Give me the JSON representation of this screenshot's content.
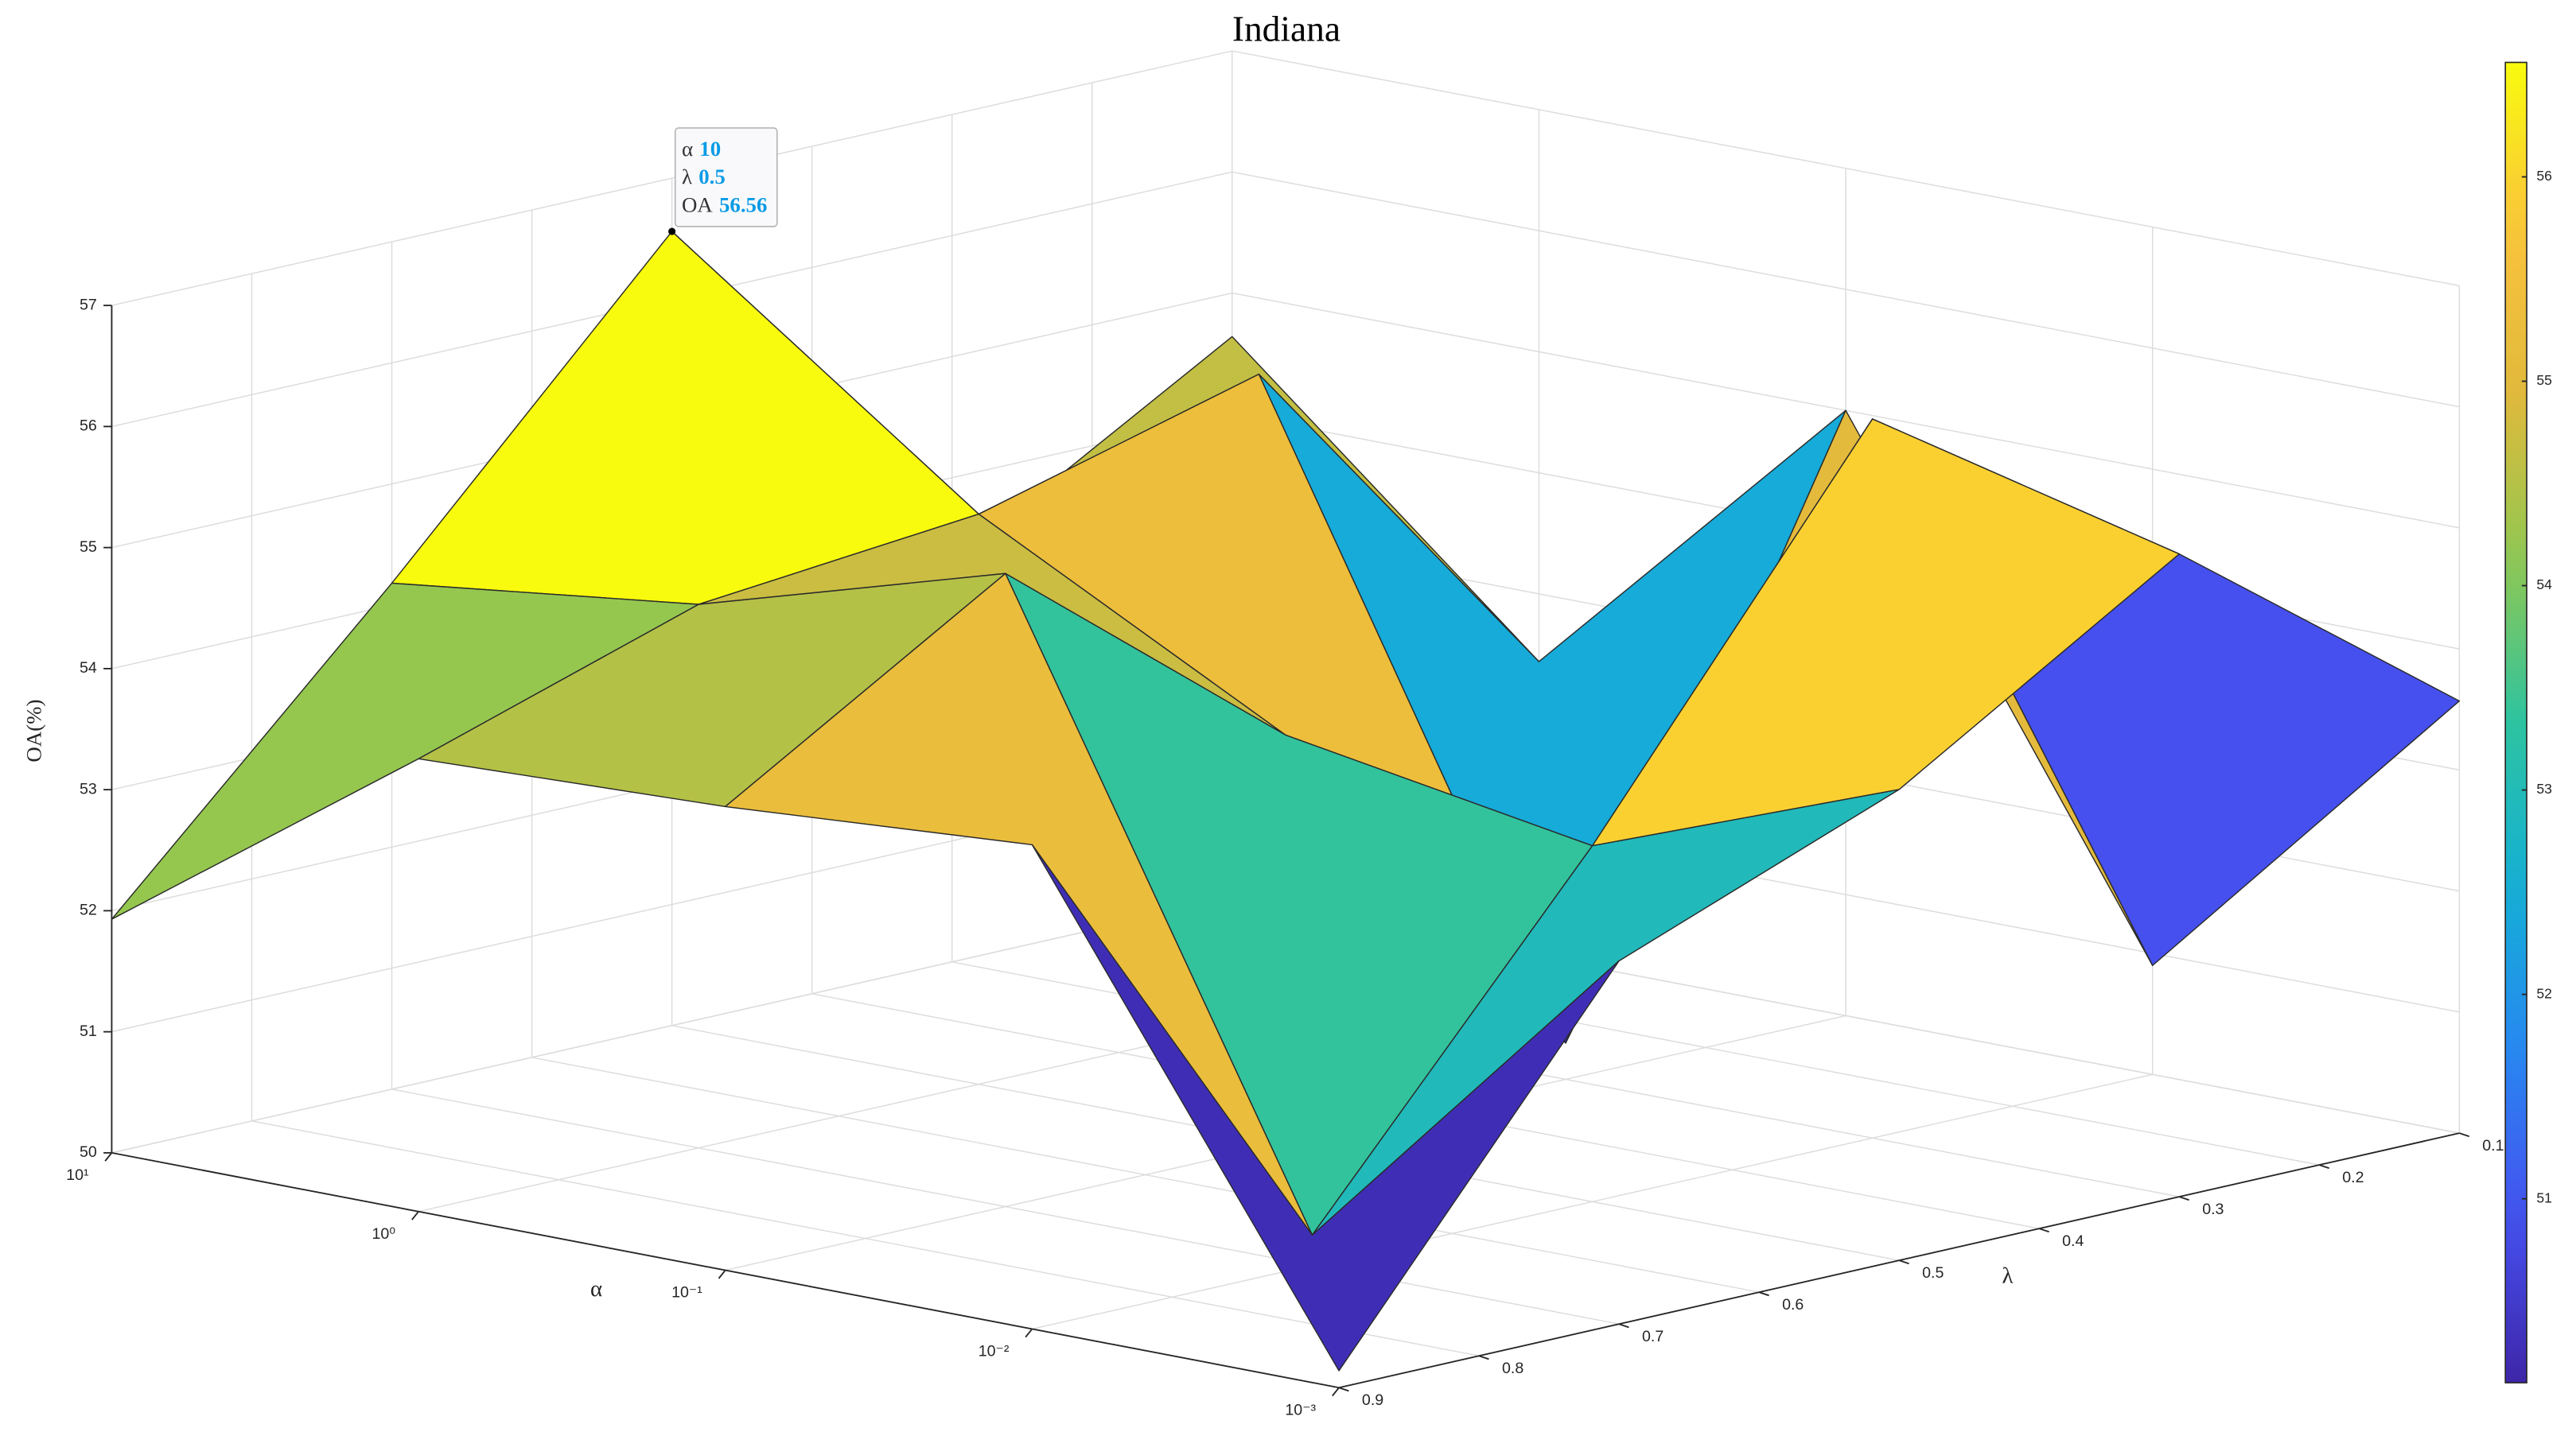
{
  "chart_data": {
    "type": "surface",
    "title": "Indiana",
    "xlabel": "α",
    "ylabel": "λ",
    "zlabel": "OA(%)",
    "x": [
      0.001,
      0.01,
      0.1,
      1,
      10
    ],
    "y": [
      0.1,
      0.3,
      0.5,
      0.7,
      0.9
    ],
    "z": [
      [
        53.57,
        55.31,
        53.89,
        53.0,
        50.14
      ],
      [
        50.9,
        55.94,
        52.94,
        50.25,
        54.0
      ],
      [
        55.0,
        50.3,
        53.37,
        55.23,
        53.83
      ],
      [
        52.44,
        55.34,
        54.71,
        54.49,
        53.74
      ],
      [
        54.64,
        53.3,
        56.56,
        54.18,
        51.93
      ]
    ],
    "xscale": "log",
    "xlim": [
      0.001,
      10
    ],
    "xticks": [
      {
        "value": 0.001,
        "label": "10⁻³"
      },
      {
        "value": 0.01,
        "label": "10⁻²"
      },
      {
        "value": 0.1,
        "label": "10⁻¹"
      },
      {
        "value": 1,
        "label": "10⁰"
      },
      {
        "value": 10,
        "label": "10¹"
      }
    ],
    "ylim": [
      0.1,
      0.9
    ],
    "yticks": [
      0.1,
      0.2,
      0.3,
      0.4,
      0.5,
      0.6,
      0.7,
      0.8,
      0.9
    ],
    "zlim": [
      50,
      57
    ],
    "zticks": [
      50,
      51,
      52,
      53,
      54,
      55,
      56,
      57
    ],
    "grid": true,
    "colormap": "parula",
    "clim": [
      50.1,
      56.56
    ],
    "cticks": [
      51,
      52,
      53,
      54,
      55,
      56
    ],
    "datatip": {
      "labels": [
        "α",
        "λ",
        "OA"
      ],
      "values": [
        10,
        0.5,
        56.56
      ]
    }
  }
}
